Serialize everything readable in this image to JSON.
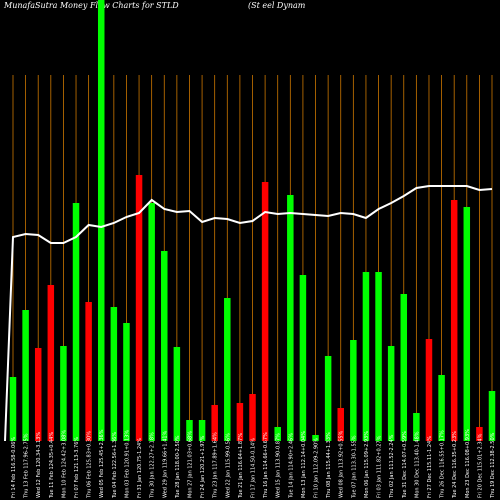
{
  "chart_data": {
    "type": "bar",
    "title_left": "MunafaSutra  Money Flow  Charts for STLD",
    "title_right": "(St                    eel Dynam",
    "categories": [
      "Fri 14 Feb 116.58-0.06%",
      "Thu 13 Feb 117.96-2.75%",
      "Wed 12 Feb 120.34-3.13%",
      "Tue 11 Feb 124.35+0.44%",
      "Mon 10 Feb 124.42+3.08%",
      "Fri 07 Feb 121.13-3.76%",
      "Thu 06 Feb 125.83+0.30%",
      "Wed 05 Feb 125.45+2.36%",
      "Tue 04 Feb 122.56+1.36%",
      "Mon 03 Feb 120.91+0.13%",
      "Fri 31 Jan 120.75-1.24%",
      "Thu 30 Jan 122.27+2.18%",
      "Wed 29 Jan 119.66+1.41%",
      "Tue 28 Jan 118.00-2.50%",
      "Mon 27 Jan 121.03+0.68%",
      "Fri 24 Jan 120.21+1.97%",
      "Thu 23 Jan 117.89+1.64%",
      "Wed 22 Jan 115.99-0.56%",
      "Tue 21 Jan 116.64+1.87%",
      "Fri 17 Jan 114.50-0.14%",
      "Thu 16 Jan 114.66+0.67%",
      "Wed 15 Jan 113.90-0.87%",
      "Tue 14 Jan 114.90+2.46%",
      "Mon 13 Jan 112.14+0.04%",
      "Fri 10 Jan 112.09-2.90%",
      "Thu 08 Jan 115.44+1.33%",
      "Wed 08 Jan 113.92+0.55%",
      "Tue 07 Jan 113.30-1.55%",
      "Mon 06 Jan 115.09+2.93%",
      "Fri 03 Jan 111.82+0.27%",
      "Thu 02 Jan 111.52-2.24%",
      "Tue 31 Dec 114.07+0.59%",
      "Mon 30 Dec 113.40-1.48%",
      "Fri 27 Dec 115.11-1.24%",
      "Thu 26 Dec 116.55+0.17%",
      "Tue 24 Dec 116.35+0.23%",
      "Mon 23 Dec 116.08+0.93%",
      "Fri 20 Dec 115.01+2.34%",
      "Thu 19 Dec 112.38-2.50%",
      "Wed 18 Dec 115.26-3.60%",
      "Tue 17 Dec 119.57-1.57%",
      "Mon 16 Dec 121.48+0.58%"
    ],
    "bar_heights_rel": [
      9,
      35,
      9,
      40,
      52,
      48,
      80,
      94,
      29,
      42,
      47,
      32,
      65,
      34,
      36,
      14,
      31,
      82,
      9,
      72,
      60,
      65,
      69,
      69,
      60,
      40,
      57,
      78,
      40,
      43,
      70,
      57,
      26,
      72,
      65,
      60,
      74,
      88,
      82,
      31,
      61,
      20
    ],
    "bar_colors": [
      "green",
      "green",
      "green",
      "green",
      "green",
      "red",
      "green",
      "green",
      "green",
      "green",
      "green",
      "red",
      "green",
      "green",
      "green",
      "green",
      "green",
      "green",
      "red",
      "green",
      "green",
      "red",
      "red",
      "green",
      "green",
      "red",
      "red",
      "green",
      "red",
      "green",
      "green",
      "green",
      "red",
      "green",
      "red",
      "green",
      "green",
      "green",
      "red",
      "green",
      "green",
      "red"
    ],
    "ylim": [
      0,
      100
    ],
    "colors": {
      "background": "#000000",
      "up": "#00ff00",
      "down": "#ff0000",
      "line": "#ffffff",
      "grid": "#cc7700",
      "text": "#ffffff"
    }
  }
}
